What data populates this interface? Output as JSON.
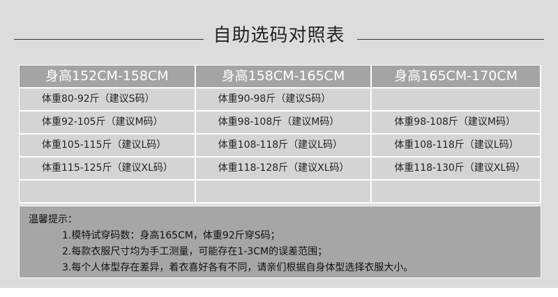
{
  "title": "自助选码对照表",
  "headers": [
    "身高152CM-158CM",
    "身高158CM-165CM",
    "身高165CM-170CM"
  ],
  "rows": [
    [
      "体重80-92斤（建议S码）",
      "体重90-98斤（建议S码）",
      ""
    ],
    [
      "体重92-105斤（建议M码）",
      "体重98-108斤（建议M码）",
      "体重98-108斤（建议M码）"
    ],
    [
      "体重105-115斤（建议L码）",
      "体重108-118斤（建议L码）",
      "体重108-118斤（建议L码）"
    ],
    [
      "体重115-125斤（建议XL码）",
      "体重118-128斤（建议XL码）",
      "体重118-130斤（建议XL码）"
    ],
    [
      "",
      "",
      ""
    ]
  ],
  "notes": {
    "heading": "温馨提示：",
    "items": [
      "1.模特试穿码数：身高165CM，体重92斤穿S码；",
      "2.每款衣服尺寸均为手工测量，可能存在1-3CM的误差范围；",
      "3.每个人体型存在差异，着衣喜好各有不同，请亲们根据自身体型选择衣服大小。"
    ]
  }
}
